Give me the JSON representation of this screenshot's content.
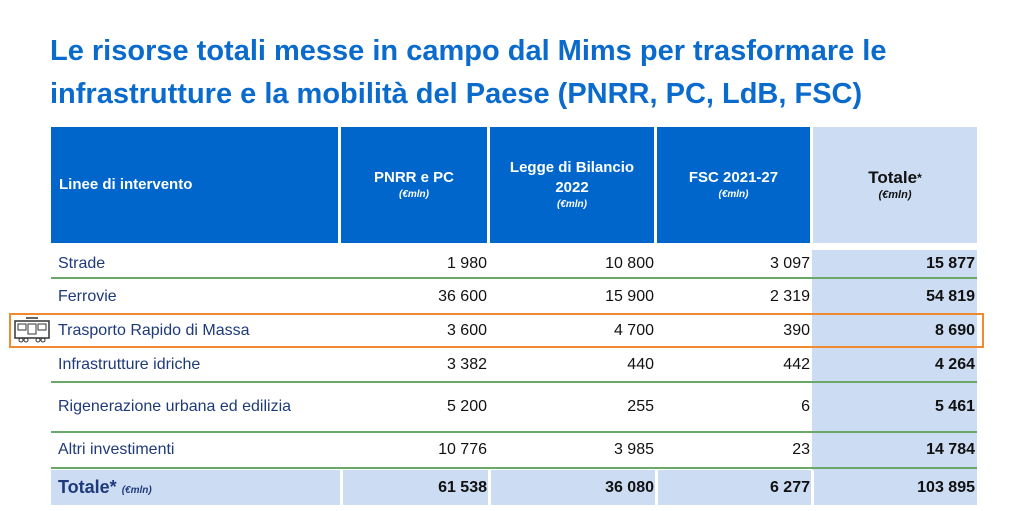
{
  "title": "Le risorse totali messe in campo dal Mims per trasformare le infrastrutture e la mobilità del Paese (PNRR, PC, LdB, FSC)",
  "headers": {
    "col0": "Linee di intervento",
    "col1": "PNRR e PC",
    "col2": "Legge di Bilancio 2022",
    "col3": "FSC 2021-27",
    "col4": "Totale",
    "asterisk": "*",
    "unit": "(€mln)"
  },
  "rows": [
    {
      "label": "Strade",
      "pnrr": "1 980",
      "ldb": "10 800",
      "fsc": "3 097",
      "tot": "15 877"
    },
    {
      "label": "Ferrovie",
      "pnrr": "36 600",
      "ldb": "15 900",
      "fsc": "2 319",
      "tot": "54 819"
    },
    {
      "label": "Trasporto Rapido di Massa",
      "pnrr": "3 600",
      "ldb": "4 700",
      "fsc": "390",
      "tot": "8 690"
    },
    {
      "label": "Infrastrutture idriche",
      "pnrr": "3 382",
      "ldb": "440",
      "fsc": "442",
      "tot": "4 264"
    },
    {
      "label": "Rigenerazione urbana ed edilizia",
      "pnrr": "5 200",
      "ldb": "255",
      "fsc": "6",
      "tot": "5 461"
    },
    {
      "label": "Altri investimenti",
      "pnrr": "10 776",
      "ldb": "3 985",
      "fsc": "23",
      "tot": "14 784"
    }
  ],
  "total": {
    "label": "Totale*",
    "unit": "(€mln)",
    "pnrr": "61 538",
    "ldb": "36 080",
    "fsc": "6 277",
    "tot": "103 895"
  },
  "colors": {
    "header": "#0066cc",
    "total_bg": "#ccdcf2",
    "highlight": "#f08a30",
    "divider": "#6aa86a"
  }
}
